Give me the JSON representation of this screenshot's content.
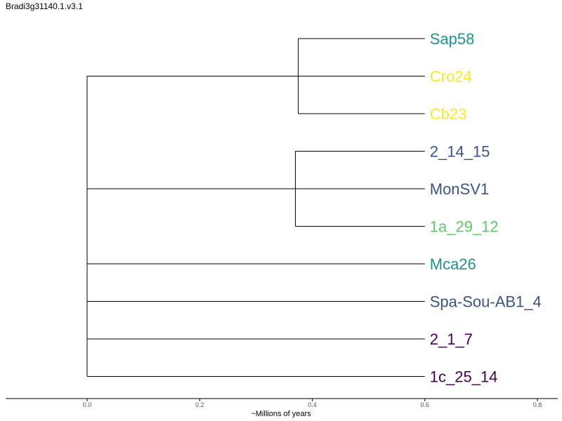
{
  "title": "Bradi3g31140.1.v3.1",
  "colors": {
    "teal": "#21918c",
    "yellow": "#fde725",
    "blue": "#3b528b",
    "green": "#5ec962",
    "purple": "#440154",
    "branch": "#000000"
  },
  "chart_data": {
    "type": "dendrogram",
    "xlabel": "~Millions of years",
    "xlim": [
      -0.143,
      0.837
    ],
    "xticks": [
      "0.0",
      "0.2",
      "0.4",
      "0.6",
      "0.8"
    ],
    "xtick_values": [
      0.0,
      0.2,
      0.4,
      0.6,
      0.8
    ],
    "leaves": [
      {
        "name": "Sap58",
        "color": "#21918c"
      },
      {
        "name": "Cro24",
        "color": "#fde725"
      },
      {
        "name": "Cb23",
        "color": "#fde725"
      },
      {
        "name": "2_14_15",
        "color": "#3b528b"
      },
      {
        "name": "MonSV1",
        "color": "#3b528b"
      },
      {
        "name": "1a_29_12",
        "color": "#5ec962"
      },
      {
        "name": "Mca26",
        "color": "#21918c"
      },
      {
        "name": "Spa-Sou-AB1_4",
        "color": "#3b528b"
      },
      {
        "name": "2_1_7",
        "color": "#440154"
      },
      {
        "name": "1c_25_14",
        "color": "#440154"
      }
    ],
    "tree": {
      "height": 0.0,
      "children": [
        {
          "height": 0.0,
          "children": [
            {
              "height": 0.0,
              "children": [
                {
                  "height": 0.0,
                  "children": [
                    {
                      "height": 0.0,
                      "children": [
                        {
                          "height": 0.375,
                          "children": [
                            {
                              "leaf": 0,
                              "height": 0.6
                            },
                            {
                              "leaf": 1,
                              "height": 0.6
                            },
                            {
                              "leaf": 2,
                              "height": 0.6
                            }
                          ]
                        },
                        {
                          "height": 0.37,
                          "children": [
                            {
                              "leaf": 3,
                              "height": 0.6
                            },
                            {
                              "leaf": 4,
                              "height": 0.6
                            },
                            {
                              "leaf": 5,
                              "height": 0.6
                            }
                          ]
                        }
                      ]
                    },
                    {
                      "leaf": 6,
                      "height": 0.6
                    }
                  ]
                },
                {
                  "leaf": 7,
                  "height": 0.6
                }
              ]
            },
            {
              "leaf": 8,
              "height": 0.6
            }
          ]
        },
        {
          "leaf": 9,
          "height": 0.6
        }
      ]
    }
  }
}
